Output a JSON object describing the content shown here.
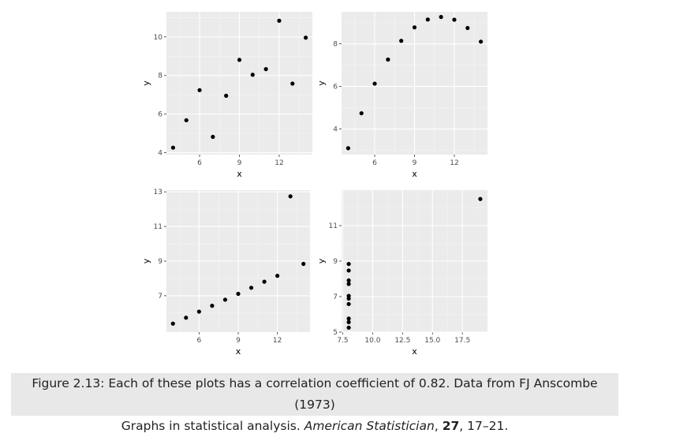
{
  "chart_data": [
    {
      "type": "scatter",
      "xlabel": "x",
      "ylabel": "y",
      "xlim": [
        3.5,
        14.5
      ],
      "ylim": [
        3.9,
        11.3
      ],
      "xticks": [
        6,
        9,
        12
      ],
      "xtick_labels": [
        "6",
        "9",
        "12"
      ],
      "yticks": [
        4,
        6,
        8,
        10
      ],
      "ytick_labels": [
        "4",
        "6",
        "8",
        "10"
      ],
      "grid": true,
      "x": [
        4,
        5,
        6,
        7,
        8,
        9,
        10,
        11,
        12,
        13,
        14
      ],
      "y": [
        4.26,
        5.68,
        7.24,
        4.82,
        6.95,
        8.81,
        8.04,
        8.33,
        10.84,
        7.58,
        9.96
      ]
    },
    {
      "type": "scatter",
      "xlabel": "x",
      "ylabel": "y",
      "xlim": [
        3.5,
        14.5
      ],
      "ylim": [
        2.8,
        9.5
      ],
      "xticks": [
        6,
        9,
        12
      ],
      "xtick_labels": [
        "6",
        "9",
        "12"
      ],
      "yticks": [
        4,
        6,
        8
      ],
      "ytick_labels": [
        "4",
        "6",
        "8"
      ],
      "grid": true,
      "x": [
        4,
        5,
        6,
        7,
        8,
        9,
        10,
        11,
        12,
        13,
        14
      ],
      "y": [
        3.1,
        4.74,
        6.13,
        7.26,
        8.14,
        8.77,
        9.14,
        9.26,
        9.13,
        8.74,
        8.1
      ]
    },
    {
      "type": "scatter",
      "xlabel": "x",
      "ylabel": "y",
      "xlim": [
        3.5,
        14.5
      ],
      "ylim": [
        4.9,
        13.1
      ],
      "xticks": [
        6,
        9,
        12
      ],
      "xtick_labels": [
        "6",
        "9",
        "12"
      ],
      "yticks": [
        7,
        9,
        11,
        13
      ],
      "ytick_labels": [
        "7",
        "9",
        "11",
        "13"
      ],
      "grid": true,
      "x": [
        4,
        5,
        6,
        7,
        8,
        9,
        10,
        11,
        12,
        13,
        14
      ],
      "y": [
        5.39,
        5.73,
        6.08,
        6.42,
        6.77,
        7.11,
        7.46,
        7.81,
        8.15,
        12.74,
        8.84
      ]
    },
    {
      "type": "scatter",
      "xlabel": "x",
      "ylabel": "y",
      "xlim": [
        7.4,
        19.6
      ],
      "ylim": [
        5.0,
        13.0
      ],
      "xticks": [
        7.5,
        10.0,
        12.5,
        15.0,
        17.5
      ],
      "xtick_labels": [
        "7.5",
        "10.0",
        "12.5",
        "15.0",
        "17.5"
      ],
      "yticks": [
        5,
        7,
        9,
        11
      ],
      "ytick_labels": [
        "5",
        "7",
        "9",
        "11"
      ],
      "grid": true,
      "x": [
        8,
        8,
        8,
        8,
        8,
        8,
        8,
        19,
        8,
        8,
        8
      ],
      "y": [
        6.58,
        5.76,
        7.71,
        8.84,
        8.47,
        7.04,
        5.25,
        12.5,
        5.56,
        7.91,
        6.89
      ]
    }
  ],
  "caption": {
    "line1": "Figure 2.13: Each of these plots has a correlation coefficient of 0.82. Data from FJ Anscombe (1973)",
    "line2_prefix": "Graphs in statistical analysis. ",
    "journal": "American Statistician",
    "separator": ", ",
    "volume": "27",
    "pages": ", 17–21."
  }
}
